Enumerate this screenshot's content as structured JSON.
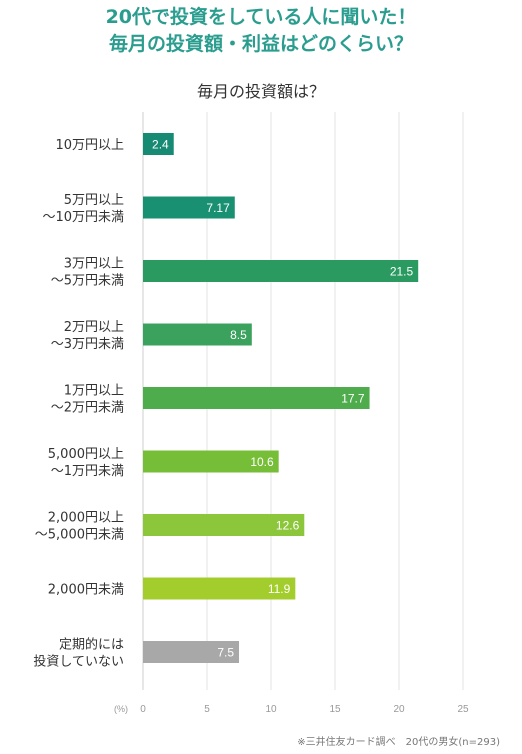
{
  "header": {
    "line1": "20代で投資をしている人に聞いた！",
    "line2": "毎月の投資額・利益はどのくらい？"
  },
  "source_note": "※三井住友カード調べ　20代の男女(n=293)",
  "colors": {
    "title": "#2a9d8f",
    "gridline": "#e3e3e3",
    "bar_label": "#ffffff",
    "category_label": "#333333",
    "axis_text": "#999999"
  },
  "chart_data": {
    "type": "bar",
    "orientation": "horizontal",
    "title": "毎月の投資額は？",
    "unit_label": "(%)",
    "xlim": [
      0,
      25
    ],
    "x_ticks": [
      0,
      5,
      10,
      15,
      20,
      25
    ],
    "grid": true,
    "categories": [
      [
        "10万円以上"
      ],
      [
        "5万円以上",
        "～10万円未満"
      ],
      [
        "3万円以上",
        "～5万円未満"
      ],
      [
        "2万円以上",
        "～3万円未満"
      ],
      [
        "1万円以上",
        "～2万円未満"
      ],
      [
        "5,000円以上",
        "～1万円未満"
      ],
      [
        "2,000円以上",
        "～5,000円未満"
      ],
      [
        "2,000円未満"
      ],
      [
        "定期的には",
        "投資していない"
      ]
    ],
    "values": [
      2.4,
      7.17,
      21.5,
      8.5,
      17.7,
      10.6,
      12.6,
      11.9,
      7.5
    ],
    "value_labels": [
      "2.4",
      "7.17",
      "21.5",
      "8.5",
      "17.7",
      "10.6",
      "12.6",
      "11.9",
      "7.5"
    ],
    "bar_colors": [
      "#168a73",
      "#1a9072",
      "#2a9a61",
      "#3aa25d",
      "#4fac4d",
      "#77be38",
      "#8cc63a",
      "#a3cd2c",
      "#a8a8a8"
    ]
  }
}
